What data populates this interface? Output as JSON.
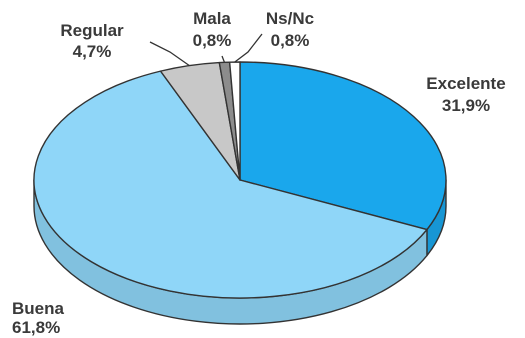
{
  "chart_data": {
    "type": "pie",
    "title": "",
    "slices": [
      {
        "label": "Excelente",
        "value": 31.9,
        "value_label": "31,9%",
        "color": "#1aa7ec"
      },
      {
        "label": "Buena",
        "value": 61.8,
        "value_label": "61,8%",
        "color": "#8fd6f8"
      },
      {
        "label": "Regular",
        "value": 4.7,
        "value_label": "4,7%",
        "color": "#c8c8c8"
      },
      {
        "label": "Mala",
        "value": 0.8,
        "value_label": "0,8%",
        "color": "#8c8c8c"
      },
      {
        "label": "Ns/Nc",
        "value": 0.8,
        "value_label": "0,8%",
        "color": "#ffffff"
      }
    ],
    "style": "3d",
    "legend": "none"
  }
}
